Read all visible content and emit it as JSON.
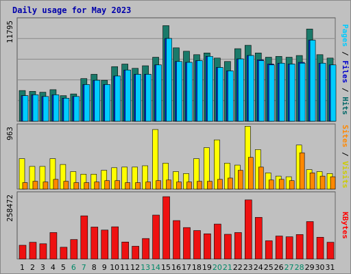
{
  "chart_data": {
    "type": "bar",
    "title": "Daily usage for May 2023",
    "categories": [
      "1",
      "2",
      "3",
      "4",
      "5",
      "6",
      "7",
      "8",
      "9",
      "10",
      "11",
      "12",
      "13",
      "14",
      "15",
      "16",
      "17",
      "18",
      "19",
      "20",
      "21",
      "22",
      "23",
      "24",
      "25",
      "26",
      "27",
      "28",
      "29",
      "30",
      "31"
    ],
    "weekend_days": [
      "6",
      "7",
      "13",
      "14",
      "20",
      "21",
      "27",
      "28"
    ],
    "panels": [
      {
        "id": "hits-files-pages",
        "ymax_label": "11795",
        "ylim": [
          0,
          11795
        ],
        "right_label": [
          {
            "text": "Pages",
            "color": "#00ccff"
          },
          {
            "text": " / ",
            "color": "#000000"
          },
          {
            "text": "Files",
            "color": "#0000cc"
          },
          {
            "text": " / ",
            "color": "#000000"
          },
          {
            "text": "Hits",
            "color": "#006666"
          }
        ],
        "series": [
          {
            "name": "Hits",
            "color": "#1a7a6a",
            "values": [
              3600,
              3500,
              3400,
              3700,
              3000,
              3200,
              5000,
              5500,
              4800,
              6400,
              6700,
              6200,
              6500,
              7500,
              11200,
              8600,
              8200,
              7800,
              8000,
              7400,
              7000,
              8500,
              8900,
              8000,
              7500,
              7600,
              7500,
              7700,
              10800,
              7800,
              7400
            ]
          },
          {
            "name": "Files",
            "color": "#0033dd",
            "values": [
              3000,
              3100,
              2900,
              3100,
              2700,
              2900,
              4300,
              4800,
              4300,
              5300,
              6000,
              5500,
              5500,
              6600,
              9700,
              7000,
              6900,
              7100,
              7600,
              6300,
              5900,
              7300,
              7700,
              7200,
              6700,
              6800,
              6700,
              6900,
              9500,
              6800,
              6600
            ]
          },
          {
            "name": "Pages",
            "color": "#00ccff",
            "values": [
              3000,
              3100,
              2900,
              3100,
              2700,
              2900,
              4300,
              4800,
              4300,
              5300,
              6000,
              5500,
              5500,
              6600,
              9700,
              7000,
              6900,
              7100,
              7600,
              6300,
              5900,
              7300,
              7700,
              7100,
              6600,
              6800,
              6700,
              6800,
              9500,
              6800,
              6600
            ]
          }
        ]
      },
      {
        "id": "visits-sites",
        "ymax_label": "963",
        "ylim": [
          0,
          963
        ],
        "right_label": [
          {
            "text": "Sites",
            "color": "#ff8800"
          },
          {
            "text": " / ",
            "color": "#000000"
          },
          {
            "text": "Visits",
            "color": "#cccc00"
          }
        ],
        "series": [
          {
            "name": "Visits",
            "color": "#ffff00",
            "values": [
              470,
              350,
              350,
              470,
              380,
              270,
              230,
              230,
              290,
              330,
              340,
              340,
              360,
              920,
              400,
              270,
              240,
              470,
              640,
              760,
              400,
              370,
              970,
              610,
              250,
              200,
              190,
              680,
              300,
              270,
              240
            ]
          },
          {
            "name": "Sites",
            "color": "#ff8800",
            "values": [
              100,
              120,
              110,
              150,
              120,
              100,
              100,
              110,
              130,
              130,
              100,
              100,
              110,
              130,
              140,
              110,
              110,
              120,
              120,
              150,
              170,
              290,
              490,
              340,
              140,
              150,
              130,
              560,
              250,
              200,
              190
            ]
          }
        ]
      },
      {
        "id": "kbytes",
        "ymax_label": "258472",
        "ylim": [
          0,
          258472
        ],
        "right_label": [
          {
            "text": "KBytes",
            "color": "#ff0000"
          }
        ],
        "series": [
          {
            "name": "KBytes",
            "color": "#ee1111",
            "values": [
              55000,
              67000,
              61000,
              106000,
              47000,
              78000,
              173000,
              128000,
              116000,
              129000,
              68000,
              51000,
              82000,
              176000,
              250000,
              154000,
              126000,
              114000,
              101000,
              140000,
              99000,
              106000,
              237000,
              167000,
              73000,
              92000,
              89000,
              98000,
              150000,
              87000,
              67000
            ]
          }
        ]
      }
    ]
  }
}
